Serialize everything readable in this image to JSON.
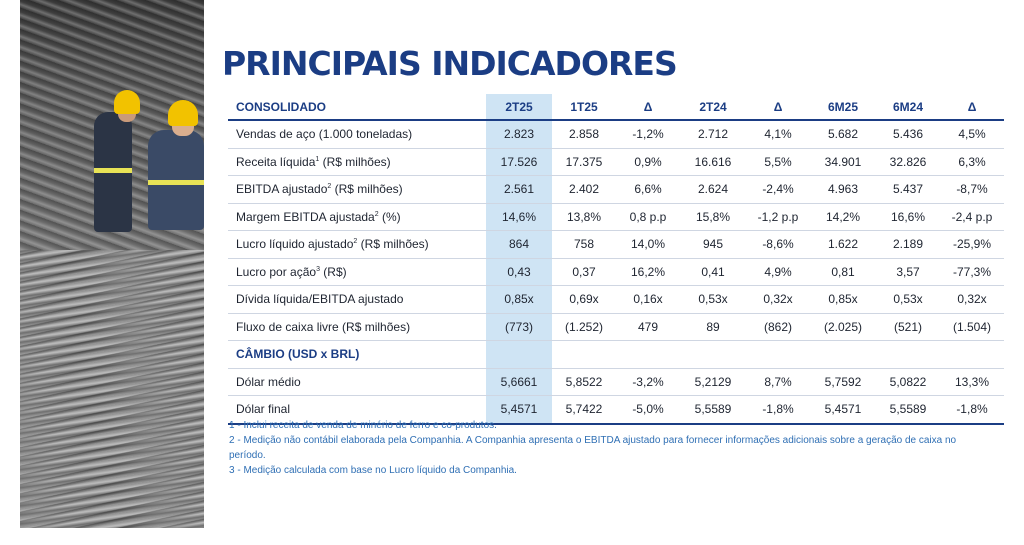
{
  "title": "PRINCIPAIS INDICADORES",
  "table": {
    "headers": [
      "CONSOLIDADO",
      "2T25",
      "1T25",
      "Δ",
      "2T24",
      "Δ",
      "6M25",
      "6M24",
      "Δ"
    ],
    "rows": [
      {
        "label": "Vendas de aço (1.000 toneladas)",
        "sup": "",
        "suffix": "",
        "values": [
          "2.823",
          "2.858",
          "-1,2%",
          "2.712",
          "4,1%",
          "5.682",
          "5.436",
          "4,5%"
        ]
      },
      {
        "label": "Receita líquida",
        "sup": "1",
        "suffix": " (R$ milhões)",
        "values": [
          "17.526",
          "17.375",
          "0,9%",
          "16.616",
          "5,5%",
          "34.901",
          "32.826",
          "6,3%"
        ]
      },
      {
        "label": "EBITDA ajustado",
        "sup": "2",
        "suffix": " (R$ milhões)",
        "values": [
          "2.561",
          "2.402",
          "6,6%",
          "2.624",
          "-2,4%",
          "4.963",
          "5.437",
          "-8,7%"
        ]
      },
      {
        "label": "Margem EBITDA ajustada",
        "sup": "2",
        "suffix": " (%)",
        "values": [
          "14,6%",
          "13,8%",
          "0,8 p.p",
          "15,8%",
          "-1,2 p.p",
          "14,2%",
          "16,6%",
          "-2,4 p.p"
        ]
      },
      {
        "label": "Lucro líquido ajustado",
        "sup": "2",
        "suffix": " (R$ milhões)",
        "values": [
          "864",
          "758",
          "14,0%",
          "945",
          "-8,6%",
          "1.622",
          "2.189",
          "-25,9%"
        ]
      },
      {
        "label": "Lucro por ação",
        "sup": "3",
        "suffix": " (R$)",
        "values": [
          "0,43",
          "0,37",
          "16,2%",
          "0,41",
          "4,9%",
          "0,81",
          "3,57",
          "-77,3%"
        ]
      },
      {
        "label": "Dívida líquida/EBITDA ajustado",
        "sup": "",
        "suffix": "",
        "values": [
          "0,85x",
          "0,69x",
          "0,16x",
          "0,53x",
          "0,32x",
          "0,85x",
          "0,53x",
          "0,32x"
        ]
      },
      {
        "label": "Fluxo de caixa livre (R$ milhões)",
        "sup": "",
        "suffix": "",
        "values": [
          "(773)",
          "(1.252)",
          "479",
          "89",
          "(862)",
          "(2.025)",
          "(521)",
          "(1.504)"
        ]
      }
    ],
    "section_label": "CÂMBIO (USD x BRL)",
    "fx_rows": [
      {
        "label": "Dólar médio",
        "values": [
          "5,6661",
          "5,8522",
          "-3,2%",
          "5,2129",
          "8,7%",
          "5,7592",
          "5,0822",
          "13,3%"
        ]
      },
      {
        "label": "Dólar final",
        "values": [
          "5,4571",
          "5,7422",
          "-5,0%",
          "5,5589",
          "-1,8%",
          "5,4571",
          "5,5589",
          "-1,8%"
        ]
      }
    ]
  },
  "notes": [
    "1 - Inclui receita de venda de minério de ferro e co-produtos.",
    "2 - Medição não contábil elaborada pela Companhia. A Companhia apresenta o EBITDA ajustado para fornecer informações adicionais sobre a geração de caixa no período.",
    "3 - Medição calculada com base no Lucro líquido da Companhia."
  ],
  "colors": {
    "brand": "#1b3d84",
    "highlight": "#cfe4f4",
    "notes": "#2f6fb4"
  }
}
